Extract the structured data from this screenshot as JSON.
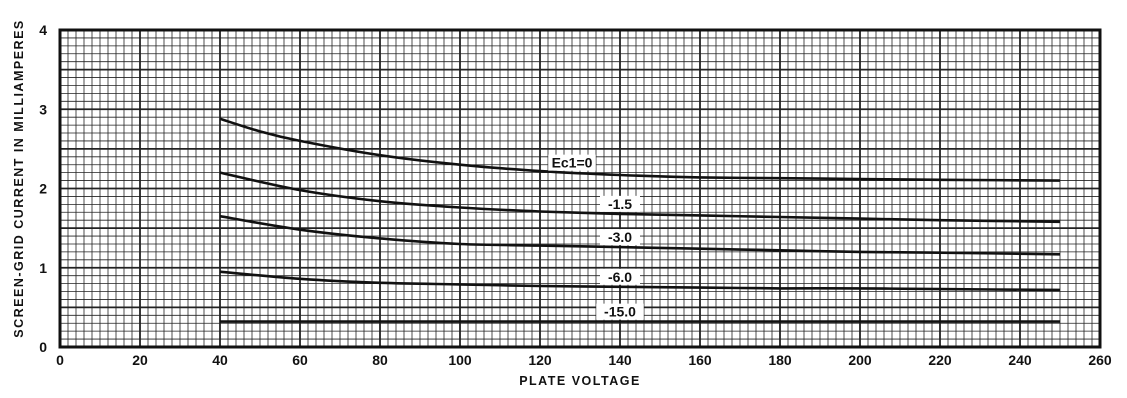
{
  "chart_data": {
    "type": "line",
    "title": "",
    "xlabel": "PLATE VOLTAGE",
    "ylabel": "SCREEN-GRID CURRENT IN MILLIAMPERES",
    "xlim": [
      0,
      260
    ],
    "ylim": [
      0,
      4
    ],
    "x_ticks": [
      "0",
      "20",
      "40",
      "60",
      "80",
      "100",
      "120",
      "140",
      "160",
      "180",
      "200",
      "220",
      "240",
      "260"
    ],
    "y_ticks": [
      "0",
      "1",
      "2",
      "3",
      "4"
    ],
    "grid": true,
    "series": [
      {
        "name": "Ec1=0",
        "x": [
          40,
          50,
          60,
          80,
          100,
          120,
          140,
          160,
          180,
          200,
          220,
          250
        ],
        "y": [
          2.88,
          2.72,
          2.6,
          2.42,
          2.3,
          2.22,
          2.17,
          2.14,
          2.13,
          2.12,
          2.11,
          2.1
        ],
        "label_at_x": 128
      },
      {
        "name": "-1.5",
        "x": [
          40,
          60,
          80,
          100,
          120,
          140,
          160,
          180,
          200,
          220,
          250
        ],
        "y": [
          2.2,
          1.98,
          1.84,
          1.76,
          1.71,
          1.68,
          1.66,
          1.64,
          1.62,
          1.6,
          1.58
        ],
        "label_at_x": 140
      },
      {
        "name": "-3.0",
        "x": [
          40,
          60,
          80,
          100,
          120,
          140,
          160,
          180,
          200,
          220,
          250
        ],
        "y": [
          1.65,
          1.48,
          1.37,
          1.3,
          1.28,
          1.26,
          1.24,
          1.22,
          1.2,
          1.19,
          1.17
        ],
        "label_at_x": 140
      },
      {
        "name": "-6.0",
        "x": [
          40,
          60,
          80,
          100,
          120,
          140,
          160,
          180,
          200,
          220,
          250
        ],
        "y": [
          0.95,
          0.86,
          0.81,
          0.79,
          0.77,
          0.76,
          0.75,
          0.74,
          0.74,
          0.73,
          0.72
        ],
        "label_at_x": 140
      },
      {
        "name": "-15.0",
        "x": [
          40,
          100,
          160,
          250
        ],
        "y": [
          0.32,
          0.32,
          0.32,
          0.32
        ],
        "label_at_x": 140
      }
    ]
  }
}
